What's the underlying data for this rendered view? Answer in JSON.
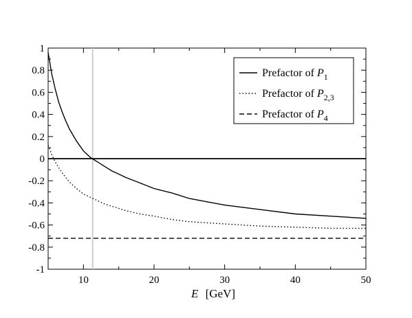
{
  "chart_data": {
    "type": "line",
    "title": "",
    "xlabel_var": "E",
    "xlabel_unit": "[GeV]",
    "xlim": [
      5,
      50
    ],
    "ylim": [
      -1,
      1
    ],
    "x_ticks": [
      10,
      20,
      30,
      40,
      50
    ],
    "x_tick_labels": [
      "10",
      "20",
      "30",
      "40",
      "50"
    ],
    "y_ticks": [
      1,
      0.8,
      0.6,
      0.4,
      0.2,
      0,
      -0.2,
      -0.4,
      -0.6,
      -0.8,
      -1
    ],
    "y_tick_labels": [
      "1",
      "0.8",
      "0.6",
      "0.4",
      "0.2",
      "0",
      "-0.2",
      "-0.4",
      "-0.6",
      "-0.8",
      "-1"
    ],
    "grid": false,
    "legend_position": "top-right",
    "reference_lines": {
      "horizontal_zero": 0,
      "vertical_x": 11.3,
      "vertical_color": "#cccccc"
    },
    "series": [
      {
        "legend_prefix": "Prefactor of ",
        "legend_var": "P",
        "legend_sub": "1",
        "style": "solid",
        "x": [
          5,
          5.5,
          6,
          6.5,
          7,
          7.5,
          8,
          9,
          10,
          11,
          11.5,
          12,
          13,
          14,
          15,
          16,
          18,
          20,
          22.5,
          25,
          27.5,
          30,
          35,
          40,
          45,
          50
        ],
        "y": [
          0.96,
          0.77,
          0.63,
          0.51,
          0.42,
          0.34,
          0.27,
          0.16,
          0.07,
          0.01,
          -0.01,
          -0.03,
          -0.07,
          -0.11,
          -0.14,
          -0.17,
          -0.22,
          -0.27,
          -0.31,
          -0.36,
          -0.39,
          -0.42,
          -0.46,
          -0.5,
          -0.52,
          -0.54
        ]
      },
      {
        "legend_prefix": "Prefactor of ",
        "legend_var": "P",
        "legend_sub": "2,3",
        "style": "dotted",
        "x": [
          5,
          5.5,
          6,
          6.5,
          7,
          7.5,
          8,
          9,
          10,
          11,
          12,
          13,
          14,
          15,
          16,
          18,
          20,
          22.5,
          25,
          27.5,
          30,
          35,
          40,
          45,
          50
        ],
        "y": [
          0.12,
          0.04,
          -0.03,
          -0.08,
          -0.13,
          -0.17,
          -0.21,
          -0.27,
          -0.32,
          -0.35,
          -0.38,
          -0.41,
          -0.43,
          -0.45,
          -0.47,
          -0.5,
          -0.52,
          -0.55,
          -0.57,
          -0.58,
          -0.59,
          -0.61,
          -0.62,
          -0.63,
          -0.63
        ]
      },
      {
        "legend_prefix": "Prefactor of ",
        "legend_var": "P",
        "legend_sub": "4",
        "style": "dashed",
        "x": [
          5,
          50
        ],
        "y": [
          -0.72,
          -0.72
        ]
      }
    ]
  }
}
